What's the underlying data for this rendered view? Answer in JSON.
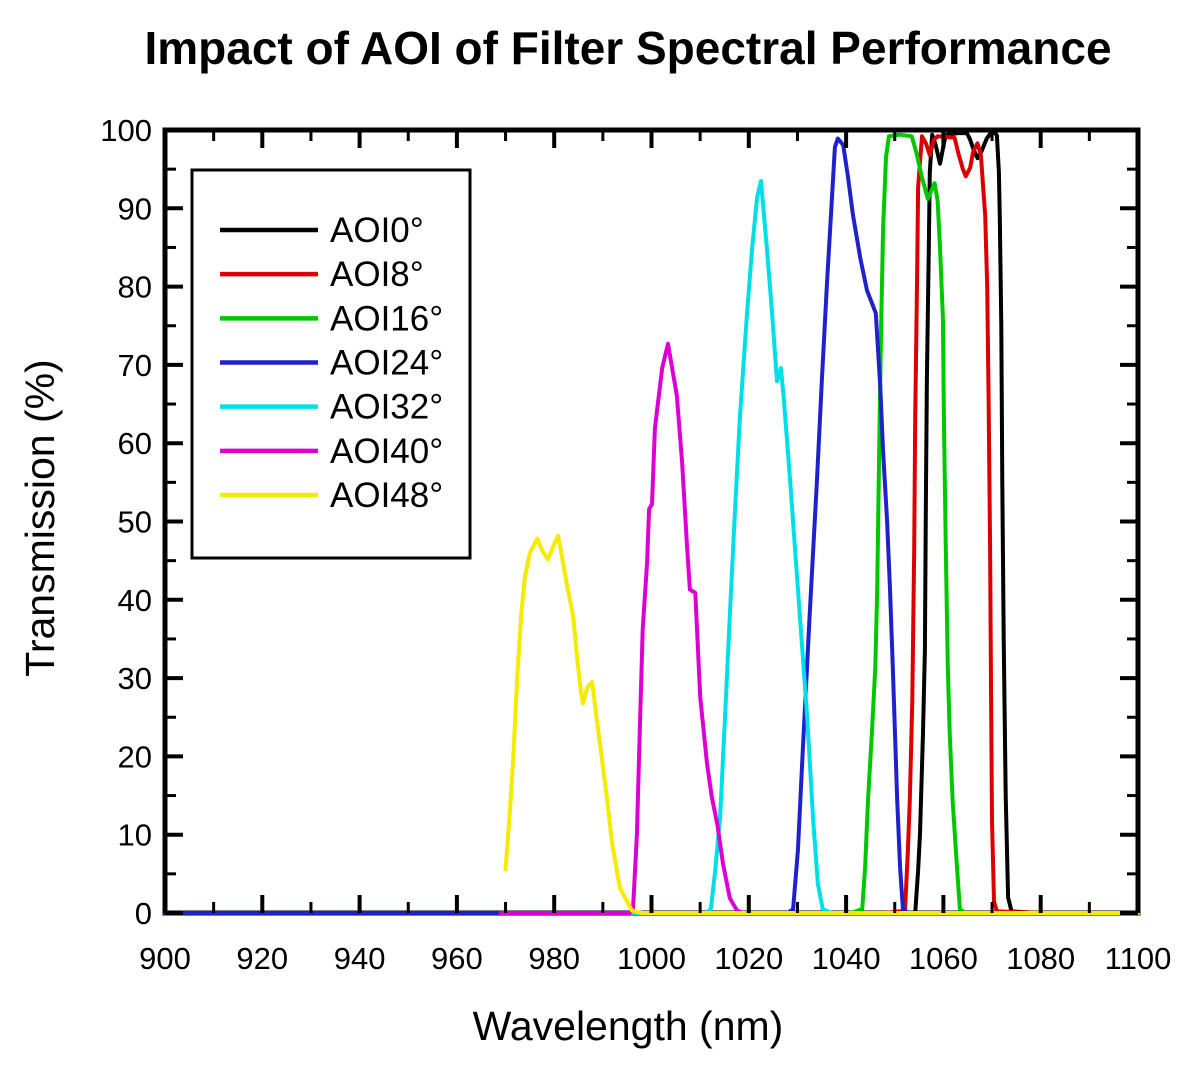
{
  "page": {
    "background": "#ffffff"
  },
  "chart_data": {
    "type": "line",
    "title": "Impact of AOI of Filter Spectral Performance",
    "xlabel": "Wavelength (nm)",
    "ylabel": "Transmission (%)",
    "xlim": [
      900,
      1100
    ],
    "ylim": [
      0,
      100
    ],
    "grid": false,
    "frame_color": "#000000",
    "x_major_ticks": [
      900,
      920,
      940,
      960,
      980,
      1000,
      1020,
      1040,
      1060,
      1080,
      1100
    ],
    "x_minor_ticks": [
      910,
      930,
      950,
      970,
      990,
      1010,
      1030,
      1050,
      1070,
      1090
    ],
    "y_major_ticks": [
      0,
      10,
      20,
      30,
      40,
      50,
      60,
      70,
      80,
      90,
      100
    ],
    "y_minor_ticks": [
      5,
      15,
      25,
      35,
      45,
      55,
      65,
      75,
      85,
      95
    ],
    "legend": {
      "position": "upper-left"
    },
    "series": [
      {
        "name": "AOI0°",
        "color": "#000000",
        "points": [
          [
            900,
            0
          ],
          [
            1050,
            0
          ],
          [
            1054.2,
            0
          ],
          [
            1054.8,
            5.4
          ],
          [
            1055.2,
            10.1
          ],
          [
            1055.8,
            23
          ],
          [
            1056.2,
            33.6
          ],
          [
            1056.4,
            52.9
          ],
          [
            1056.6,
            68.3
          ],
          [
            1057,
            85
          ],
          [
            1057.2,
            94.6
          ],
          [
            1057.7,
            99.4
          ],
          [
            1058.4,
            98.1
          ],
          [
            1059.3,
            95.7
          ],
          [
            1060.3,
            98.9
          ],
          [
            1060.7,
            99.4
          ],
          [
            1063,
            99.6
          ],
          [
            1064.8,
            99.6
          ],
          [
            1065.4,
            98.9
          ],
          [
            1066.2,
            97.5
          ],
          [
            1067,
            96.4
          ],
          [
            1067.8,
            97.2
          ],
          [
            1068.9,
            98.9
          ],
          [
            1069.6,
            99.5
          ],
          [
            1070.5,
            99.7
          ],
          [
            1071,
            99.3
          ],
          [
            1071.4,
            94.6
          ],
          [
            1071.6,
            88.8
          ],
          [
            1071.9,
            75
          ],
          [
            1072.1,
            55
          ],
          [
            1072.4,
            35
          ],
          [
            1072.8,
            15
          ],
          [
            1073.3,
            2
          ],
          [
            1074,
            0.2
          ],
          [
            1080,
            0
          ],
          [
            1100,
            0
          ]
        ]
      },
      {
        "name": "AOI8°",
        "color": "#dd0000",
        "points": [
          [
            900,
            0
          ],
          [
            1048,
            0
          ],
          [
            1052.1,
            0.3
          ],
          [
            1052.7,
            8
          ],
          [
            1053.1,
            14.4
          ],
          [
            1053.6,
            27.2
          ],
          [
            1054,
            46.5
          ],
          [
            1054.2,
            63.2
          ],
          [
            1054.6,
            81.1
          ],
          [
            1054.8,
            92.7
          ],
          [
            1055.6,
            99.2
          ],
          [
            1056.4,
            98.3
          ],
          [
            1057.2,
            96.8
          ],
          [
            1058,
            98.7
          ],
          [
            1058.8,
            99.2
          ],
          [
            1062.3,
            99
          ],
          [
            1063,
            97.2
          ],
          [
            1064,
            95
          ],
          [
            1064.6,
            94.1
          ],
          [
            1065.5,
            95.2
          ],
          [
            1066.1,
            97.2
          ],
          [
            1067,
            98.3
          ],
          [
            1067.7,
            96.8
          ],
          [
            1068.2,
            92.4
          ],
          [
            1068.6,
            89.1
          ],
          [
            1069,
            80
          ],
          [
            1069.3,
            65.7
          ],
          [
            1069.6,
            46.5
          ],
          [
            1069.8,
            27.2
          ],
          [
            1070,
            11.8
          ],
          [
            1070.4,
            1.5
          ],
          [
            1071,
            0.2
          ],
          [
            1080,
            0
          ],
          [
            1100,
            0
          ]
        ]
      },
      {
        "name": "AOI16°",
        "color": "#00c800",
        "points": [
          [
            900,
            0
          ],
          [
            1041,
            0
          ],
          [
            1043.3,
            0.5
          ],
          [
            1043.9,
            5.8
          ],
          [
            1044.5,
            14.4
          ],
          [
            1045.3,
            23
          ],
          [
            1046,
            31.4
          ],
          [
            1046.4,
            41.3
          ],
          [
            1046.8,
            59.3
          ],
          [
            1047.2,
            74.7
          ],
          [
            1047.6,
            87.5
          ],
          [
            1048.2,
            96.5
          ],
          [
            1048.8,
            99.2
          ],
          [
            1051,
            99.4
          ],
          [
            1053.5,
            99.2
          ],
          [
            1054.5,
            97
          ],
          [
            1055.5,
            94.2
          ],
          [
            1056.8,
            91.2
          ],
          [
            1058.2,
            93.2
          ],
          [
            1058.8,
            91
          ],
          [
            1059.3,
            85
          ],
          [
            1059.9,
            76
          ],
          [
            1060.1,
            63.2
          ],
          [
            1060.5,
            46.5
          ],
          [
            1060.9,
            31.4
          ],
          [
            1061.3,
            23
          ],
          [
            1061.9,
            14.4
          ],
          [
            1062.8,
            5.8
          ],
          [
            1063.4,
            0.5
          ],
          [
            1064.5,
            0
          ],
          [
            1100,
            0
          ]
        ]
      },
      {
        "name": "AOI24°",
        "color": "#2020cc",
        "points": [
          [
            900,
            0
          ],
          [
            1028,
            0
          ],
          [
            1029.1,
            0.5
          ],
          [
            1030.1,
            8
          ],
          [
            1031.1,
            20.8
          ],
          [
            1032.5,
            37.9
          ],
          [
            1034,
            55.1
          ],
          [
            1035,
            67.9
          ],
          [
            1036.1,
            80.7
          ],
          [
            1037.1,
            91.4
          ],
          [
            1037.7,
            97.8
          ],
          [
            1038.3,
            98.9
          ],
          [
            1039.4,
            98.1
          ],
          [
            1040.4,
            94
          ],
          [
            1041.4,
            89.2
          ],
          [
            1042.9,
            83.7
          ],
          [
            1044.3,
            79.5
          ],
          [
            1045.3,
            77.9
          ],
          [
            1046.1,
            76.6
          ],
          [
            1047,
            67.4
          ],
          [
            1047.6,
            58.9
          ],
          [
            1048.4,
            50.3
          ],
          [
            1049,
            41.7
          ],
          [
            1049.6,
            31.4
          ],
          [
            1050.5,
            14.4
          ],
          [
            1051.1,
            5.8
          ],
          [
            1051.7,
            0.4
          ],
          [
            1053,
            0
          ],
          [
            1100,
            0
          ]
        ]
      },
      {
        "name": "AOI32°",
        "color": "#00dfe8",
        "points": [
          [
            995,
            0
          ],
          [
            1011.5,
            0
          ],
          [
            1012.2,
            0.6
          ],
          [
            1013.1,
            5.4
          ],
          [
            1014.1,
            12.2
          ],
          [
            1015.1,
            25
          ],
          [
            1016.1,
            37.9
          ],
          [
            1017.1,
            50.7
          ],
          [
            1018.2,
            63.5
          ],
          [
            1019.6,
            76.4
          ],
          [
            1020.7,
            85
          ],
          [
            1021.7,
            91.4
          ],
          [
            1022.5,
            93.5
          ],
          [
            1023.7,
            85
          ],
          [
            1024.8,
            76.4
          ],
          [
            1025.8,
            67.9
          ],
          [
            1026.6,
            69.6
          ],
          [
            1027.2,
            65.7
          ],
          [
            1028.5,
            55.1
          ],
          [
            1029.5,
            46.5
          ],
          [
            1030.5,
            37.9
          ],
          [
            1032,
            25
          ],
          [
            1033.2,
            12.2
          ],
          [
            1034.2,
            3.7
          ],
          [
            1035.2,
            0.5
          ],
          [
            1037,
            0
          ],
          [
            1100,
            0
          ]
        ]
      },
      {
        "name": "AOI40°",
        "color": "#dc00d2",
        "points": [
          [
            969,
            0
          ],
          [
            995.5,
            0
          ],
          [
            996.2,
            0.5
          ],
          [
            997,
            10
          ],
          [
            997.6,
            23.4
          ],
          [
            998.2,
            36.2
          ],
          [
            999.1,
            44.8
          ],
          [
            999.5,
            51.6
          ],
          [
            1000.1,
            52.2
          ],
          [
            1000.7,
            61.9
          ],
          [
            1002.2,
            69.6
          ],
          [
            1003.4,
            72.7
          ],
          [
            1005.2,
            66.1
          ],
          [
            1006.3,
            57.6
          ],
          [
            1007.3,
            46.9
          ],
          [
            1007.9,
            41.3
          ],
          [
            1009,
            40.9
          ],
          [
            1010,
            27.6
          ],
          [
            1011.4,
            19.1
          ],
          [
            1012.4,
            14.8
          ],
          [
            1013.5,
            11.4
          ],
          [
            1014.7,
            6.3
          ],
          [
            1016.1,
            1.9
          ],
          [
            1017.6,
            0.3
          ],
          [
            1019,
            0
          ],
          [
            1100,
            0
          ]
        ]
      },
      {
        "name": "AOI48°",
        "color": "#f5eb00",
        "points": [
          [
            970,
            5.6
          ],
          [
            970.8,
            12
          ],
          [
            971.6,
            20
          ],
          [
            972.4,
            30
          ],
          [
            973.2,
            38
          ],
          [
            974,
            43
          ],
          [
            975,
            46
          ],
          [
            976.5,
            47.8
          ],
          [
            977.6,
            46.2
          ],
          [
            978.7,
            45.2
          ],
          [
            979.8,
            46.8
          ],
          [
            980.8,
            48.2
          ],
          [
            981.6,
            45.5
          ],
          [
            982.6,
            42
          ],
          [
            983.9,
            37.9
          ],
          [
            984.8,
            32
          ],
          [
            985.5,
            28.2
          ],
          [
            985.9,
            26.8
          ],
          [
            986.8,
            28.8
          ],
          [
            987.8,
            29.5
          ],
          [
            988.6,
            25.5
          ],
          [
            989.4,
            21.7
          ],
          [
            990.9,
            14.4
          ],
          [
            991.9,
            8.9
          ],
          [
            993.5,
            3.2
          ],
          [
            996,
            0.3
          ],
          [
            998,
            0
          ],
          [
            1100,
            0
          ]
        ]
      }
    ]
  }
}
